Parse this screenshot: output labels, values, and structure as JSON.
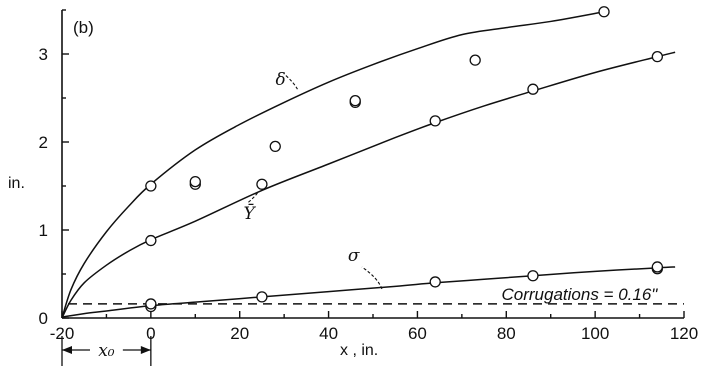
{
  "chart_data": {
    "type": "line",
    "panel_label": "(b)",
    "xlabel": "x , in.",
    "ylabel": "in.",
    "xlim": [
      -20,
      120
    ],
    "ylim": [
      0,
      3.5
    ],
    "xticks": [
      -20,
      0,
      20,
      40,
      60,
      80,
      100,
      120
    ],
    "xtick_labels": [
      "-20",
      "0",
      "20",
      "40",
      "60",
      "80",
      "100",
      "120"
    ],
    "yticks": [
      0,
      1,
      2,
      3
    ],
    "ytick_labels": [
      "0",
      "1",
      "2",
      "3"
    ],
    "grid": false,
    "series": [
      {
        "name": "δ",
        "points": [
          [
            0,
            1.5
          ],
          [
            10,
            1.52
          ],
          [
            10,
            1.55
          ],
          [
            28,
            1.95
          ],
          [
            46,
            2.45
          ],
          [
            46,
            2.47
          ],
          [
            73,
            2.93
          ],
          [
            102,
            3.48
          ]
        ],
        "curve": [
          [
            -20,
            0
          ],
          [
            -18,
            0.32
          ],
          [
            -15,
            0.62
          ],
          [
            -10,
            0.98
          ],
          [
            -5,
            1.27
          ],
          [
            0,
            1.52
          ],
          [
            10,
            1.91
          ],
          [
            20,
            2.2
          ],
          [
            30,
            2.45
          ],
          [
            40,
            2.68
          ],
          [
            50,
            2.88
          ],
          [
            60,
            3.06
          ],
          [
            70,
            3.22
          ],
          [
            80,
            3.3
          ],
          [
            90,
            3.37
          ],
          [
            102,
            3.48
          ]
        ]
      },
      {
        "name": "Ȳ",
        "points": [
          [
            0,
            0.88
          ],
          [
            25,
            1.52
          ],
          [
            64,
            2.24
          ],
          [
            86,
            2.6
          ],
          [
            114,
            2.97
          ]
        ],
        "curve": [
          [
            -20,
            0
          ],
          [
            -18,
            0.2
          ],
          [
            -15,
            0.4
          ],
          [
            -10,
            0.6
          ],
          [
            -5,
            0.76
          ],
          [
            0,
            0.89
          ],
          [
            10,
            1.1
          ],
          [
            25,
            1.45
          ],
          [
            40,
            1.75
          ],
          [
            55,
            2.05
          ],
          [
            64,
            2.22
          ],
          [
            75,
            2.41
          ],
          [
            86,
            2.58
          ],
          [
            100,
            2.79
          ],
          [
            114,
            2.97
          ],
          [
            118,
            3.02
          ]
        ]
      },
      {
        "name": "σ",
        "points": [
          [
            0,
            0.13
          ],
          [
            0,
            0.16
          ],
          [
            25,
            0.24
          ],
          [
            64,
            0.41
          ],
          [
            86,
            0.48
          ],
          [
            114,
            0.56
          ],
          [
            114,
            0.58
          ]
        ],
        "curve": [
          [
            -20,
            0.01
          ],
          [
            -15,
            0.05
          ],
          [
            -10,
            0.08
          ],
          [
            0,
            0.14
          ],
          [
            10,
            0.18
          ],
          [
            25,
            0.24
          ],
          [
            40,
            0.3
          ],
          [
            55,
            0.36
          ],
          [
            64,
            0.4
          ],
          [
            75,
            0.44
          ],
          [
            86,
            0.48
          ],
          [
            100,
            0.53
          ],
          [
            114,
            0.57
          ],
          [
            118,
            0.58
          ]
        ]
      }
    ],
    "reference_line": {
      "y": 0.16,
      "label": "Corrugations = 0.16\""
    },
    "dimension": {
      "label": "x₀",
      "from": -20,
      "to": 0
    }
  }
}
